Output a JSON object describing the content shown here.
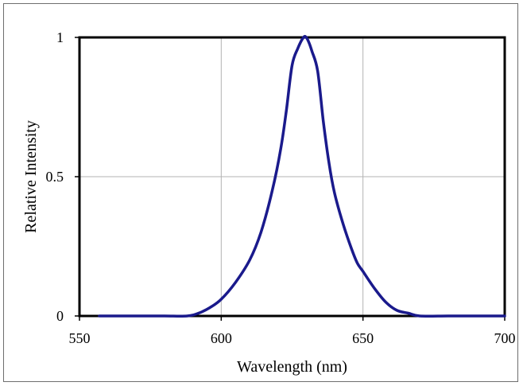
{
  "chart_data": {
    "type": "line",
    "title": "",
    "xlabel": "Wavelength (nm)",
    "ylabel": "Relative Intensity",
    "xlim": [
      550,
      700
    ],
    "ylim": [
      0,
      1
    ],
    "x_ticks": [
      "550",
      "600",
      "650",
      "700"
    ],
    "y_ticks": [
      "0",
      "0.5",
      "1"
    ],
    "grid": "vertical-and-horizontal",
    "legend": "none",
    "line_color": "#1a1a8c",
    "series": [
      {
        "x": [
          557,
          570,
          580,
          588,
          592,
          596,
          600,
          605,
          610,
          614,
          618,
          621,
          623,
          625,
          627,
          629,
          630,
          631,
          632,
          634,
          636,
          638,
          640,
          643,
          646,
          648,
          650,
          654,
          658,
          662,
          666,
          670,
          680,
          690,
          700
        ],
        "y": [
          0,
          0,
          0,
          0,
          0.01,
          0.03,
          0.06,
          0.12,
          0.2,
          0.3,
          0.45,
          0.6,
          0.74,
          0.9,
          0.96,
          1.0,
          1.0,
          0.98,
          0.95,
          0.88,
          0.7,
          0.55,
          0.44,
          0.33,
          0.24,
          0.19,
          0.16,
          0.1,
          0.05,
          0.02,
          0.01,
          0,
          0,
          0,
          0
        ]
      }
    ]
  }
}
